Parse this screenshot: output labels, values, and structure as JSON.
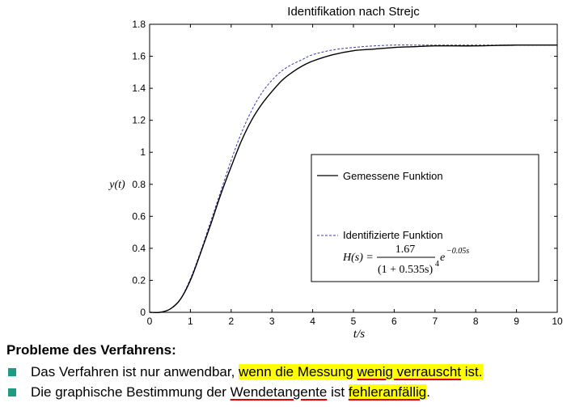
{
  "colors": {
    "measured_line": "#000000",
    "identified_line": "#3b3bb5",
    "bullet_marker": "#1f9a83",
    "highlight": "#ffff00",
    "underline": "#e00000"
  },
  "chart_data": {
    "type": "line",
    "title": "Identifikation nach Strejc",
    "xlabel": "t/s",
    "ylabel": "y(t)",
    "xlim": [
      0,
      10
    ],
    "ylim": [
      0,
      1.8
    ],
    "x_ticks": [
      "0",
      "1",
      "2",
      "3",
      "4",
      "5",
      "6",
      "7",
      "8",
      "9",
      "10"
    ],
    "y_ticks": [
      "0",
      "0.2",
      "0.4",
      "0.6",
      "0.8",
      "1",
      "1.2",
      "1.4",
      "1.6",
      "1.8"
    ],
    "grid": false,
    "legend_position": "center-right",
    "x": [
      0,
      0.25,
      0.5,
      0.75,
      1,
      1.25,
      1.5,
      1.75,
      2,
      2.25,
      2.5,
      2.75,
      3,
      3.25,
      3.5,
      3.75,
      4,
      4.5,
      5,
      5.5,
      6,
      6.5,
      7,
      8,
      9,
      10
    ],
    "series": [
      {
        "name": "Gemessene Funktion",
        "style": "solid",
        "values": [
          0,
          0,
          0.02,
          0.08,
          0.2,
          0.37,
          0.55,
          0.74,
          0.91,
          1.07,
          1.2,
          1.3,
          1.38,
          1.45,
          1.5,
          1.54,
          1.57,
          1.61,
          1.635,
          1.645,
          1.655,
          1.66,
          1.665,
          1.665,
          1.67,
          1.67
        ]
      },
      {
        "name": "Identifizierte Funktion",
        "style": "dashed",
        "values": [
          0,
          0,
          0.02,
          0.08,
          0.21,
          0.38,
          0.57,
          0.76,
          0.95,
          1.12,
          1.26,
          1.37,
          1.45,
          1.51,
          1.55,
          1.58,
          1.61,
          1.64,
          1.655,
          1.665,
          1.67,
          1.67,
          1.67,
          1.67,
          1.67,
          1.67
        ]
      }
    ],
    "annotation": {
      "lhs": "H(s) =",
      "numerator": "1.67",
      "denominator": "(1 + 0.535s)",
      "denominator_exponent": "4",
      "factor": "e",
      "factor_exponent": "−0.05s"
    }
  },
  "section": {
    "heading": "Probleme des Verfahrens:",
    "bullets": [
      {
        "segments": [
          {
            "text": "Das Verfahren ist nur anwendbar, ",
            "style": "plain"
          },
          {
            "text": "wenn die Messung ",
            "style": "highlight"
          },
          {
            "text": "wenig verrauscht",
            "style": "highlight-underline"
          },
          {
            "text": " ist.",
            "style": "highlight"
          }
        ]
      },
      {
        "segments": [
          {
            "text": "Die graphische Bestimmung der ",
            "style": "plain"
          },
          {
            "text": "Wendetangente",
            "style": "underline"
          },
          {
            "text": " ist ",
            "style": "plain"
          },
          {
            "text": "fehleranfällig",
            "style": "highlight-underline"
          },
          {
            "text": ".",
            "style": "plain"
          }
        ]
      }
    ]
  }
}
